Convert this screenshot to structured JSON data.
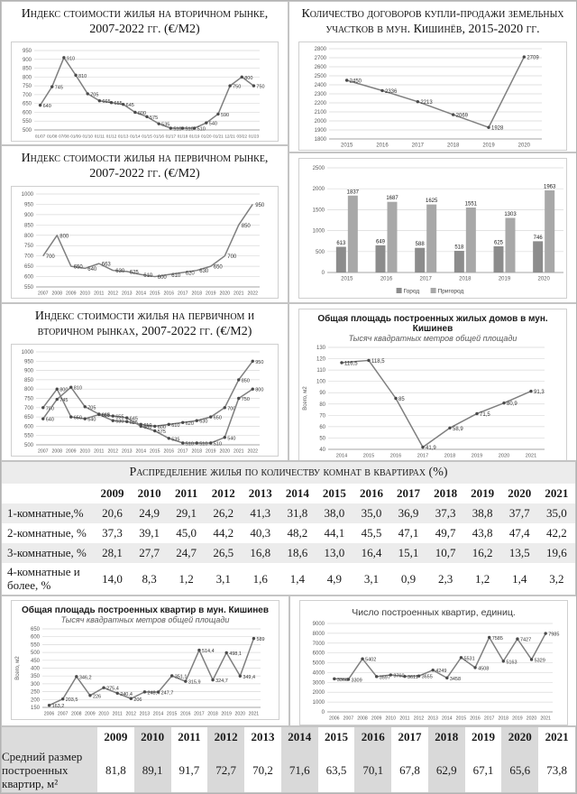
{
  "panels": {
    "secondary": {
      "title": "Индекс стоимости жилья на вторичном рынке, 2007-2022 гг. (€/М2)"
    },
    "primary": {
      "title": "Индекс стоимости жилья на первичном рынке, 2007-2022 гг. (€/М2)"
    },
    "combined": {
      "title": "Индекс стоимости жилья на первичном и вторичном рынках, 2007-2022 гг. (€/М2)"
    },
    "land": {
      "title": "Количество договоров купли-продажи земельных участков в мун. Кишинёв, 2015-2020 гг."
    },
    "houses": {
      "title": "Общая площадь построенных жилых домов в мун. Кишинев",
      "subtitle": "Тысяч квадратных метров общей площади"
    },
    "apartments_area": {
      "title": "Общая площадь построенных квартир в мун. Кишинев",
      "subtitle": "Тысяч квадратных метров общей площади"
    },
    "apartments_count": {
      "title": "Число построенных квартир, единиц."
    }
  },
  "colors": {
    "line": "#7f7f7f",
    "marker": "#4a4a4a",
    "grid": "#d9d9d9",
    "axis": "#a6a6a6",
    "bar_city": "#8c8c8c",
    "bar_suburb": "#a8a8a8",
    "stripe": "#ececef"
  },
  "chart_data": [
    {
      "id": "secondary-market-index",
      "type": "line",
      "title": "Индекс стоимости жилья на вторичном рынке, 2007-2022 гг. (€/М2)",
      "x": [
        "01/07",
        "01/08",
        "07/08",
        "01/09",
        "01/10",
        "01/11",
        "01/12",
        "01/13",
        "01/14",
        "01/15",
        "01/16",
        "01/17",
        "01/18",
        "01/19",
        "01/20",
        "01/21",
        "12/21",
        "03/22",
        "01/23"
      ],
      "values": [
        640,
        745,
        910,
        810,
        705,
        665,
        655,
        645,
        600,
        575,
        535,
        510,
        510,
        510,
        540,
        590,
        750,
        800,
        750
      ],
      "ylim": [
        500,
        950
      ],
      "ystep": 50
    },
    {
      "id": "primary-market-index",
      "type": "line",
      "markers": false,
      "title": "Индекс стоимости жилья на первичном рынке, 2007-2022 гг. (€/М2)",
      "x": [
        "2007",
        "2008",
        "2009",
        "2010",
        "2011",
        "2012",
        "2013",
        "2014",
        "2015",
        "2016",
        "2017",
        "2018",
        "2019",
        "2020",
        "2021",
        "2022"
      ],
      "values": [
        700,
        800,
        650,
        640,
        663,
        630,
        625,
        610,
        600,
        610,
        620,
        630,
        650,
        700,
        850,
        950
      ],
      "ylim": [
        550,
        1000
      ],
      "ystep": 50
    },
    {
      "id": "primary-and-secondary-index",
      "type": "line",
      "title": "Индекс стоимости жилья на первичном и вторичном рынках, 2007-2022 гг. (€/М2)",
      "x": [
        "2007",
        "2008",
        "2009",
        "2010",
        "2011",
        "2012",
        "2013",
        "2014",
        "2015",
        "2016",
        "2017",
        "2018",
        "2019",
        "2020",
        "2021",
        "2022"
      ],
      "series": [
        {
          "name": "Первичный рынок",
          "values": [
            700,
            800,
            650,
            640,
            663,
            630,
            625,
            610,
            600,
            610,
            620,
            630,
            650,
            700,
            850,
            950
          ]
        },
        {
          "name": "Вторичный рынок",
          "values": [
            640,
            745,
            810,
            705,
            665,
            655,
            645,
            600,
            575,
            535,
            510,
            510,
            510,
            540,
            750,
            800
          ]
        }
      ],
      "ylim": [
        500,
        1000
      ],
      "ystep": 50
    },
    {
      "id": "land-sale-contracts",
      "type": "line",
      "title": "Количество договоров купли-продажи земельных участков в мун. Кишинёв, 2015-2020 гг.",
      "x": [
        "2015",
        "2016",
        "2017",
        "2018",
        "2019",
        "2020"
      ],
      "values": [
        2450,
        2336,
        2213,
        2069,
        1928,
        2709
      ],
      "ylim": [
        1800,
        2800
      ],
      "ystep": 100
    },
    {
      "id": "land-sale-contracts-by-zone",
      "type": "bar",
      "legend": true,
      "x": [
        "2015",
        "2016",
        "2017",
        "2018",
        "2019",
        "2020"
      ],
      "series": [
        {
          "name": "Город",
          "color": "#8c8c8c",
          "values": [
            613,
            649,
            588,
            518,
            625,
            746
          ]
        },
        {
          "name": "Пригород",
          "color": "#a8a8a8",
          "values": [
            1837,
            1687,
            1625,
            1551,
            1303,
            1963
          ]
        }
      ],
      "ylim": [
        0,
        2500
      ],
      "ystep": 500
    },
    {
      "id": "built-houses-total-area",
      "type": "line",
      "title": "Общая площадь построенных жилых домов в мун. Кишинев",
      "subtitle": "Тысяч квадратных метров общей площади",
      "ylabel": "Всего, м2",
      "x": [
        "2014",
        "2015",
        "2016",
        "2017",
        "2018",
        "2019",
        "2020",
        "2021"
      ],
      "values": [
        116.5,
        118.5,
        85,
        41.9,
        58.9,
        71.5,
        80.9,
        91.3
      ],
      "labels": [
        "116,5",
        "118,5",
        "85",
        "41,9",
        "58,9",
        "71,5",
        "80,9",
        "91,3"
      ],
      "ylim": [
        40,
        130
      ],
      "ystep": 10
    },
    {
      "id": "built-apartments-total-area",
      "type": "line",
      "title": "Общая площадь построенных квартир в мун. Кишинев",
      "subtitle": "Тысяч квадратных метров общей площади",
      "ylabel": "Всего, м2",
      "x": [
        "2006",
        "2007",
        "2008",
        "2009",
        "2010",
        "2011",
        "2012",
        "2013",
        "2014",
        "2015",
        "2016",
        "2017",
        "2018",
        "2019",
        "2020",
        "2021"
      ],
      "values": [
        163.2,
        203.5,
        346.2,
        226,
        275.4,
        240.4,
        206,
        248.4,
        247.7,
        351.1,
        315.9,
        514.4,
        324.7,
        498.1,
        349.4,
        589
      ],
      "labels": [
        "163,2",
        "203,5",
        "346,2",
        "226",
        "275,4",
        "240,4",
        "206",
        "248,4",
        "247,7",
        "351,1",
        "315,9",
        "514,4",
        "324,7",
        "498,1",
        "349,4",
        "589"
      ],
      "ylim": [
        150,
        650
      ],
      "ystep": 50
    },
    {
      "id": "built-apartments-count",
      "type": "line",
      "title": "Число построенных квартир, единиц.",
      "x": [
        "2006",
        "2007",
        "2008",
        "2009",
        "2010",
        "2011",
        "2012",
        "2013",
        "2014",
        "2015",
        "2016",
        "2017",
        "2018",
        "2019",
        "2020",
        "2021"
      ],
      "values": [
        3368,
        3309,
        5402,
        3597,
        3760,
        3611,
        3655,
        4249,
        3458,
        5531,
        4508,
        7585,
        5163,
        7427,
        5329,
        7985
      ],
      "ylim": [
        0,
        9000
      ],
      "ystep": 1000
    }
  ],
  "tables": {
    "rooms": {
      "title": "Распределение жилья по количеству комнат в квартирах (%)",
      "years": [
        "2009",
        "2010",
        "2011",
        "2012",
        "2013",
        "2014",
        "2015",
        "2016",
        "2017",
        "2018",
        "2019",
        "2020",
        "2021"
      ],
      "rows": [
        {
          "label": "1-комнатные,%",
          "values": [
            "20,6",
            "24,9",
            "29,1",
            "26,2",
            "41,3",
            "31,8",
            "38,0",
            "35,0",
            "36,9",
            "37,3",
            "38,8",
            "37,7",
            "35,0"
          ]
        },
        {
          "label": "2-комнатные, %",
          "values": [
            "37,3",
            "39,1",
            "45,0",
            "44,2",
            "40,3",
            "48,2",
            "44,1",
            "45,5",
            "47,1",
            "49,7",
            "43,8",
            "47,4",
            "42,2"
          ]
        },
        {
          "label": "3-комнатные, %",
          "values": [
            "28,1",
            "27,7",
            "24,7",
            "26,5",
            "16,8",
            "18,6",
            "13,0",
            "16,4",
            "15,1",
            "10,7",
            "16,2",
            "13,5",
            "19,6"
          ]
        },
        {
          "label": "4-комнатные и более, %",
          "values": [
            "14,0",
            "8,3",
            "1,2",
            "3,1",
            "1,6",
            "1,4",
            "4,9",
            "3,1",
            "0,9",
            "2,3",
            "1,2",
            "1,4",
            "3,2"
          ]
        }
      ]
    },
    "avg_size": {
      "label": "Средний размер построенных квартир, м²",
      "years": [
        "2009",
        "2010",
        "2011",
        "2012",
        "2013",
        "2014",
        "2015",
        "2016",
        "2017",
        "2018",
        "2019",
        "2020",
        "2021"
      ],
      "values": [
        "81,8",
        "89,1",
        "91,7",
        "72,7",
        "70,2",
        "71,6",
        "63,5",
        "70,1",
        "67,8",
        "62,9",
        "67,1",
        "65,6",
        "73,8"
      ]
    }
  }
}
